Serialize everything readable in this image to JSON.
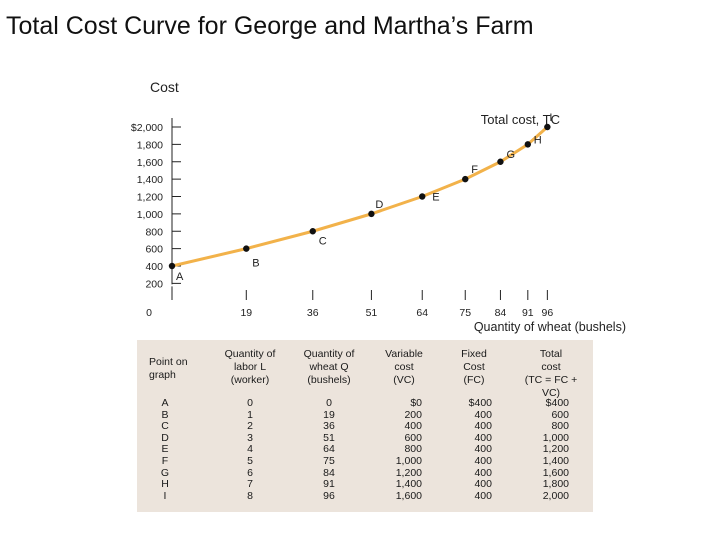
{
  "title": "Total Cost Curve for George and Martha’s Farm",
  "chart_data": {
    "type": "line",
    "ylabel": "Cost",
    "xlabel": "Quantity of wheat (bushels)",
    "curve_label": "Total cost, TC",
    "y_ticks": [
      "$2,000",
      "1,800",
      "1,600",
      "1,400",
      "1,200",
      "1,000",
      "800",
      "600",
      "400",
      "200"
    ],
    "y_tick_values": [
      2000,
      1800,
      1600,
      1400,
      1200,
      1000,
      800,
      600,
      400,
      200
    ],
    "x_tick_labels": [
      "0",
      "19",
      "36",
      "51",
      "64",
      "75",
      "84",
      "91",
      "96"
    ],
    "x_tick_values": [
      0,
      19,
      36,
      51,
      64,
      75,
      84,
      91,
      96
    ],
    "xlim": [
      0,
      96
    ],
    "ylim": [
      200,
      2000
    ],
    "color": "#f2b24a",
    "points": [
      {
        "label": "A",
        "x": 0,
        "y": 400
      },
      {
        "label": "B",
        "x": 19,
        "y": 600
      },
      {
        "label": "C",
        "x": 36,
        "y": 800
      },
      {
        "label": "D",
        "x": 51,
        "y": 1000
      },
      {
        "label": "E",
        "x": 64,
        "y": 1200
      },
      {
        "label": "F",
        "x": 75,
        "y": 1400
      },
      {
        "label": "G",
        "x": 84,
        "y": 1600
      },
      {
        "label": "H",
        "x": 91,
        "y": 1800
      },
      {
        "label": "I",
        "x": 96,
        "y": 2000
      }
    ]
  },
  "table": {
    "headers": [
      [
        "Point on",
        "graph"
      ],
      [
        "Quantity of",
        "labor L",
        "(worker)"
      ],
      [
        "Quantity of",
        "wheat Q",
        "(bushels)"
      ],
      [
        "Variable",
        "cost",
        "(VC)"
      ],
      [
        "Fixed",
        "Cost",
        "(FC)"
      ],
      [
        "Total",
        "cost",
        "(TC = FC +",
        "VC)"
      ]
    ],
    "rows": [
      [
        "A",
        "0",
        "0",
        "$0",
        "$400",
        "$400"
      ],
      [
        "B",
        "1",
        "19",
        "200",
        "400",
        "600"
      ],
      [
        "C",
        "2",
        "36",
        "400",
        "400",
        "800"
      ],
      [
        "D",
        "3",
        "51",
        "600",
        "400",
        "1,000"
      ],
      [
        "E",
        "4",
        "64",
        "800",
        "400",
        "1,200"
      ],
      [
        "F",
        "5",
        "75",
        "1,000",
        "400",
        "1,400"
      ],
      [
        "G",
        "6",
        "84",
        "1,200",
        "400",
        "1,600"
      ],
      [
        "H",
        "7",
        "91",
        "1,400",
        "400",
        "1,800"
      ],
      [
        "I",
        "8",
        "96",
        "1,600",
        "400",
        "2,000"
      ]
    ]
  }
}
